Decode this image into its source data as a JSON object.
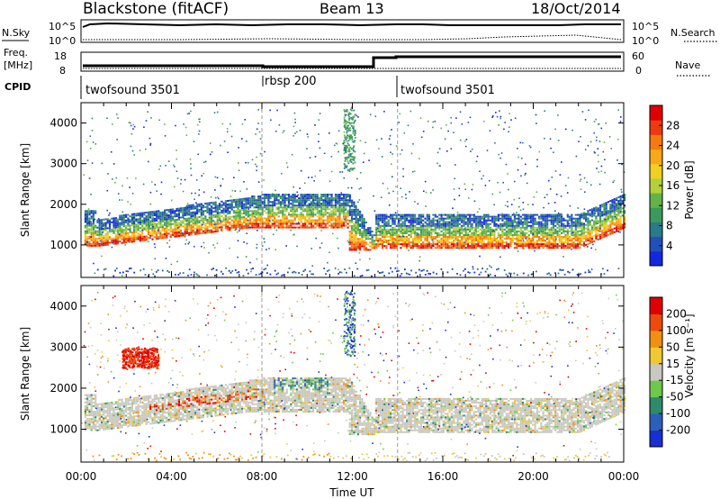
{
  "header": {
    "station": "Blackstone (fitACF)",
    "beam": "Beam 13",
    "date": "18/Oct/2014"
  },
  "sky_panel": {
    "label": "N.Sky",
    "left_top": "10^5",
    "left_bottom": "10^0",
    "right_top": "10^5",
    "right_bottom": "10^0",
    "right_label": "N.Search"
  },
  "freq_panel": {
    "label_line1": "Freq.",
    "label_line2": "[MHz]",
    "left_top": "18",
    "left_bottom": "8",
    "right_top": "60",
    "right_bottom": "0",
    "right_label": "Nave"
  },
  "cpid": {
    "label": "CPID",
    "segments": [
      {
        "name": "twofsound 3501",
        "start_hour": 0,
        "end_hour": 8
      },
      {
        "name": "rbsp 200",
        "start_hour": 8,
        "end_hour": 14
      },
      {
        "name": "twofsound 3501",
        "start_hour": 14,
        "end_hour": 24
      }
    ]
  },
  "chart_data": [
    {
      "type": "heatmap",
      "parameter": "Power",
      "ylabel": "Slant Range [km]",
      "ylim": [
        200,
        4500
      ],
      "yticks": [
        "1000",
        "2000",
        "3000",
        "4000"
      ],
      "xlim": [
        0,
        24
      ],
      "colorbar": {
        "title": "Power [dB]",
        "ticks": [
          "4",
          "8",
          "12",
          "16",
          "20",
          "24",
          "28"
        ],
        "colors": [
          "#1228e0",
          "#2050b8",
          "#2a7a8a",
          "#3a9a5a",
          "#64b24a",
          "#b4d03a",
          "#f0d020",
          "#f8a818",
          "#f57a10",
          "#ee3a10",
          "#e00000"
        ]
      },
      "features": [
        {
          "band": "strong echo band",
          "start_hour": 0.2,
          "end_hour": 11.8,
          "range_km": [
            1000,
            2300
          ]
        },
        {
          "band": "strong echo band",
          "start_hour": 12.3,
          "end_hour": 24,
          "range_km": [
            950,
            1800
          ]
        }
      ]
    },
    {
      "type": "heatmap",
      "parameter": "Velocity",
      "ylabel": "Slant Range [km]",
      "ylim": [
        200,
        4500
      ],
      "yticks": [
        "1000",
        "2000",
        "3000",
        "4000"
      ],
      "xlim": [
        0,
        24
      ],
      "xlabel": "Time UT",
      "xticks": [
        "00:00",
        "04:00",
        "08:00",
        "12:00",
        "16:00",
        "20:00",
        "00:00"
      ],
      "colorbar": {
        "title": "Velocity [m s⁻¹]",
        "ticks": [
          "200",
          "100",
          "50",
          "15",
          "-15",
          "-50",
          "-100",
          "-200"
        ],
        "colors": [
          "#1a2fd0",
          "#2a60b8",
          "#2e8a6a",
          "#6ec84a",
          "#c8c8c0",
          "#f0c830",
          "#f09010",
          "#ee4a10",
          "#e00000"
        ]
      },
      "features": [
        {
          "band": "ground scatter",
          "start_hour": 0,
          "end_hour": 24,
          "range_km": [
            900,
            2300
          ]
        },
        {
          "band": "red positive velocity patch",
          "start_hour": 1.8,
          "end_hour": 3.4,
          "range_km": [
            2500,
            3000
          ]
        }
      ]
    }
  ],
  "colors": {
    "axis": "#000000",
    "gray_scatter": "#c8c8c0"
  }
}
